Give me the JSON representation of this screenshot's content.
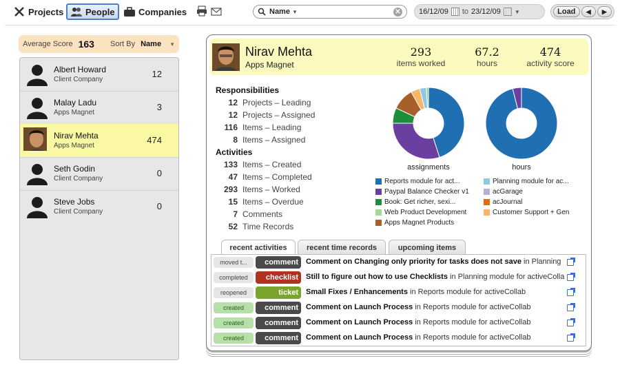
{
  "toolbar": {
    "projects": "Projects",
    "people": "People",
    "companies": "Companies",
    "search_field": "Name",
    "date_from": "16/12/09",
    "date_to_word": "to",
    "date_to": "23/12/09",
    "load": "Load"
  },
  "left": {
    "avg_label": "Average Score",
    "avg_value": "163",
    "sort_label": "Sort By",
    "sort_value": "Name",
    "people": [
      {
        "name": "Albert Howard",
        "company": "Client Company",
        "score": "12"
      },
      {
        "name": "Malay Ladu",
        "company": "Apps Magnet",
        "score": "3"
      },
      {
        "name": "Nirav Mehta",
        "company": "Apps Magnet",
        "score": "474"
      },
      {
        "name": "Seth Godin",
        "company": "Client Company",
        "score": "0"
      },
      {
        "name": "Steve Jobs",
        "company": "Client Company",
        "score": "0"
      }
    ]
  },
  "profile": {
    "name": "Nirav Mehta",
    "company": "Apps Magnet",
    "stats": [
      {
        "value": "293",
        "label": "items worked"
      },
      {
        "value": "67.2",
        "label": "hours"
      },
      {
        "value": "474",
        "label": "activity score"
      }
    ]
  },
  "responsibilities": {
    "title": "Responsibilities",
    "items": [
      {
        "n": "12",
        "label": "Projects – Leading"
      },
      {
        "n": "12",
        "label": "Projects – Assigned"
      },
      {
        "n": "116",
        "label": "Items – Leading"
      },
      {
        "n": "8",
        "label": "Items – Assigned"
      }
    ]
  },
  "activities": {
    "title": "Activities",
    "items": [
      {
        "n": "133",
        "label": "Items – Created"
      },
      {
        "n": "47",
        "label": "Items – Completed"
      },
      {
        "n": "293",
        "label": "Items – Worked"
      },
      {
        "n": "15",
        "label": "Items – Overdue"
      },
      {
        "n": "7",
        "label": "Comments"
      },
      {
        "n": "52",
        "label": "Time Records"
      }
    ]
  },
  "chart_data": [
    {
      "type": "pie",
      "title": "assignments",
      "values": [
        45,
        30,
        7,
        10,
        4,
        3,
        1
      ],
      "colors": [
        "#1f6fb2",
        "#6b3fa0",
        "#1c8f3a",
        "#a8602b",
        "#f7b56a",
        "#8ec8e3",
        "#9bd08e"
      ]
    },
    {
      "type": "pie",
      "title": "hours",
      "values": [
        96,
        4
      ],
      "colors": [
        "#1f6fb2",
        "#6b3fa0"
      ]
    }
  ],
  "legend": [
    {
      "label": "Reports module for act...",
      "color": "#1f6fb2"
    },
    {
      "label": "Planning module for ac...",
      "color": "#8ec8e3"
    },
    {
      "label": "Paypal Balance Checker v1",
      "color": "#6b3fa0"
    },
    {
      "label": "acGarage",
      "color": "#b6b0d9"
    },
    {
      "label": "Book: Get richer, sexi...",
      "color": "#1c8f3a"
    },
    {
      "label": "acJournal",
      "color": "#e36a1a"
    },
    {
      "label": "Web Product Development",
      "color": "#a7d89a"
    },
    {
      "label": "Customer Support + Gen",
      "color": "#f7b56a"
    },
    {
      "label": "Apps Magnet Products",
      "color": "#a8602b"
    }
  ],
  "tabs": [
    "recent activities",
    "recent time records",
    "upcoming items"
  ],
  "recent": [
    {
      "status": "moved t...",
      "type": "comment",
      "tcolor": "#4a4a4a",
      "bold": "Comment on Changing only priority for tasks does not save",
      "rest": " in Planning"
    },
    {
      "status": "completed",
      "type": "checklist",
      "tcolor": "#b0321f",
      "bold": "Still to figure out how to use Checklists",
      "rest": " in Planning module for activeColla"
    },
    {
      "status": "reopened",
      "type": "ticket",
      "tcolor": "#7aa52a",
      "bold": "Small Fixes / Enhancements",
      "rest": " in Reports module for activeCollab"
    },
    {
      "status": "created",
      "type": "comment",
      "tcolor": "#4a4a4a",
      "bold": "Comment on Launch Process",
      "rest": " in Reports module for activeCollab"
    },
    {
      "status": "created",
      "type": "comment",
      "tcolor": "#4a4a4a",
      "bold": "Comment on Launch Process",
      "rest": " in Reports module for activeCollab"
    },
    {
      "status": "created",
      "type": "comment",
      "tcolor": "#4a4a4a",
      "bold": "Comment on Launch Process",
      "rest": " in Reports module for activeCollab"
    }
  ]
}
